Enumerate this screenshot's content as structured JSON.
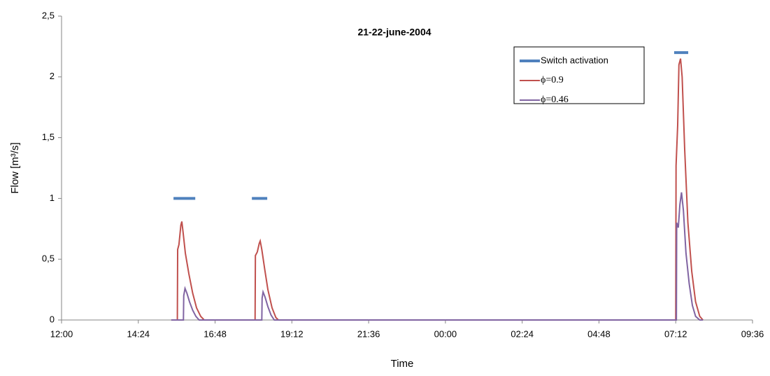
{
  "chart_data": {
    "type": "line",
    "title": "21-22-june-2004",
    "x_label": "Time",
    "y_label": "Flow [m³/s]",
    "xlim": [
      0,
      21.6
    ],
    "xticks": [
      {
        "value": 0,
        "label": "12:00"
      },
      {
        "value": 2.4,
        "label": "14:24"
      },
      {
        "value": 4.8,
        "label": "16:48"
      },
      {
        "value": 7.2,
        "label": "19:12"
      },
      {
        "value": 9.6,
        "label": "21:36"
      },
      {
        "value": 12,
        "label": "00:00"
      },
      {
        "value": 14.4,
        "label": "02:24"
      },
      {
        "value": 16.8,
        "label": "04:48"
      },
      {
        "value": 19.2,
        "label": "07:12"
      },
      {
        "value": 21.6,
        "label": "09:36"
      }
    ],
    "ylim": [
      0,
      2.5
    ],
    "yticks": [
      0,
      {
        "value": 0.5,
        "label": "0,5"
      },
      1,
      {
        "value": 1.5,
        "label": "1,5"
      },
      2,
      {
        "value": 2.5,
        "label": "2,5"
      }
    ],
    "series": [
      {
        "name": "Switch activation",
        "color": "#4f81bd",
        "x": [
          3.5,
          4.18,
          null,
          5.95,
          6.43,
          null,
          19.15,
          19.59
        ],
        "values": [
          1,
          1,
          null,
          1,
          1,
          null,
          2.2,
          2.2
        ]
      },
      {
        "name": "ϕ=0.9",
        "color": "#c0504d",
        "x": [
          3.43,
          3.62,
          3.63,
          3.67,
          3.73,
          3.76,
          3.8,
          3.87,
          3.98,
          4.1,
          4.22,
          4.35,
          4.46,
          6.05,
          6.06,
          6.12,
          6.18,
          6.21,
          6.26,
          6.35,
          6.45,
          6.58,
          6.7,
          6.78,
          19.2,
          19.21,
          19.26,
          19.3,
          19.35,
          19.4,
          19.48,
          19.58,
          19.7,
          19.82,
          19.95,
          20.05
        ],
        "values": [
          0,
          0,
          0.58,
          0.62,
          0.78,
          0.81,
          0.72,
          0.55,
          0.38,
          0.22,
          0.1,
          0.03,
          0,
          0,
          0.53,
          0.56,
          0.63,
          0.65,
          0.58,
          0.42,
          0.25,
          0.1,
          0.02,
          0,
          0,
          1.27,
          1.6,
          2.1,
          2.15,
          2.0,
          1.4,
          0.8,
          0.4,
          0.15,
          0.03,
          0
        ]
      },
      {
        "name": "ϕ=0.46",
        "color": "#8064a2",
        "x": [
          3.43,
          3.81,
          3.82,
          3.86,
          3.92,
          4.0,
          4.1,
          4.2,
          4.3,
          6.26,
          6.27,
          6.3,
          6.36,
          6.45,
          6.55,
          6.65,
          19.22,
          19.23,
          19.28,
          19.33,
          19.38,
          19.44,
          19.52,
          19.62,
          19.72,
          19.82,
          19.95,
          20.05
        ],
        "values": [
          0,
          0,
          0.2,
          0.26,
          0.22,
          0.15,
          0.08,
          0.03,
          0,
          0,
          0.18,
          0.23,
          0.19,
          0.11,
          0.04,
          0,
          0,
          0.8,
          0.76,
          0.95,
          1.05,
          0.9,
          0.55,
          0.3,
          0.12,
          0.03,
          0,
          0
        ]
      }
    ]
  }
}
